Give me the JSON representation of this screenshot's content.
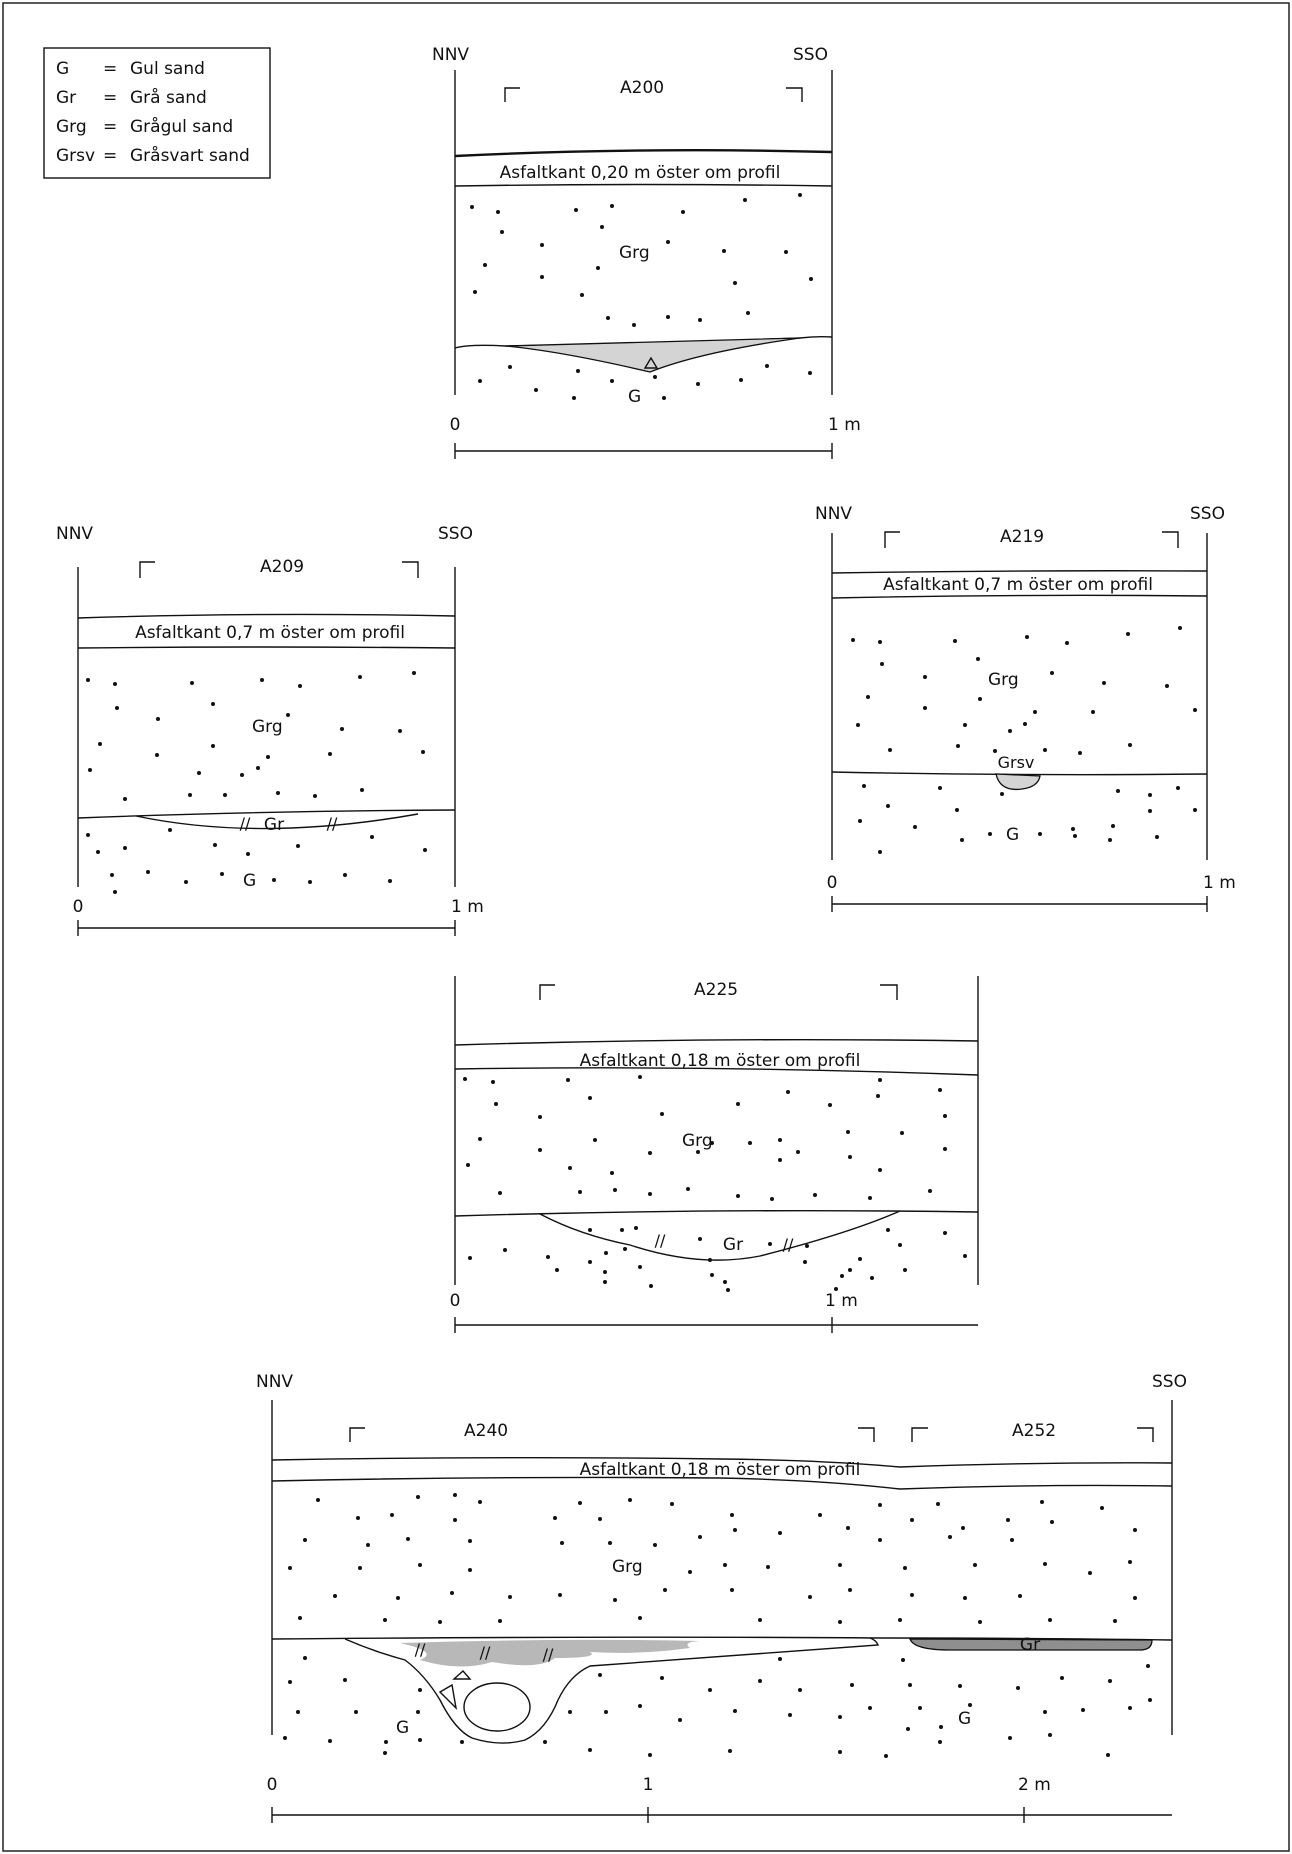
{
  "legend": {
    "items": [
      {
        "code": "G",
        "eq": "=",
        "desc": "Gul sand"
      },
      {
        "code": "Gr",
        "eq": "=",
        "desc": "Grå sand"
      },
      {
        "code": "Grg",
        "eq": "=",
        "desc": "Grågul sand"
      },
      {
        "code": "Grsv",
        "eq": "=",
        "desc": "Gråsvart sand"
      }
    ]
  },
  "a200": {
    "dir_left": "NNV",
    "dir_right": "SSO",
    "feature": "A200",
    "asphalt": "Asfaltkant 0,20 m öster om profil",
    "layer_top": "Grg",
    "layer_bottom": "G",
    "scale_start": "0",
    "scale_end": "1 m"
  },
  "a209": {
    "dir_left": "NNV",
    "dir_right": "SSO",
    "feature": "A209",
    "asphalt": "Asfaltkant 0,7 m öster om profil",
    "layer_top": "Grg",
    "layer_fill": "Gr",
    "layer_bottom": "G",
    "scale_start": "0",
    "scale_end": "1 m"
  },
  "a219": {
    "dir_left": "NNV",
    "dir_right": "SSO",
    "feature": "A219",
    "asphalt": "Asfaltkant 0,7 m öster om profil",
    "layer_top": "Grg",
    "layer_fill": "Grsv",
    "layer_bottom": "G",
    "scale_start": "0",
    "scale_end": "1 m"
  },
  "a225": {
    "feature": "A225",
    "asphalt": "Asfaltkant 0,18 m öster om profil",
    "layer_top": "Grg",
    "layer_fill": "Gr",
    "scale_start": "0",
    "scale_end": "1 m"
  },
  "a240": {
    "dir_left": "NNV",
    "dir_right": "SSO",
    "feature_1": "A240",
    "feature_2": "A252",
    "asphalt": "Asfaltkant 0,18 m öster om profil",
    "layer_top": "Grg",
    "layer_fill": "Gr",
    "layer_bottom_1": "G",
    "layer_bottom_2": "G",
    "scale_start": "0",
    "scale_mid": "1",
    "scale_end": "2 m"
  }
}
